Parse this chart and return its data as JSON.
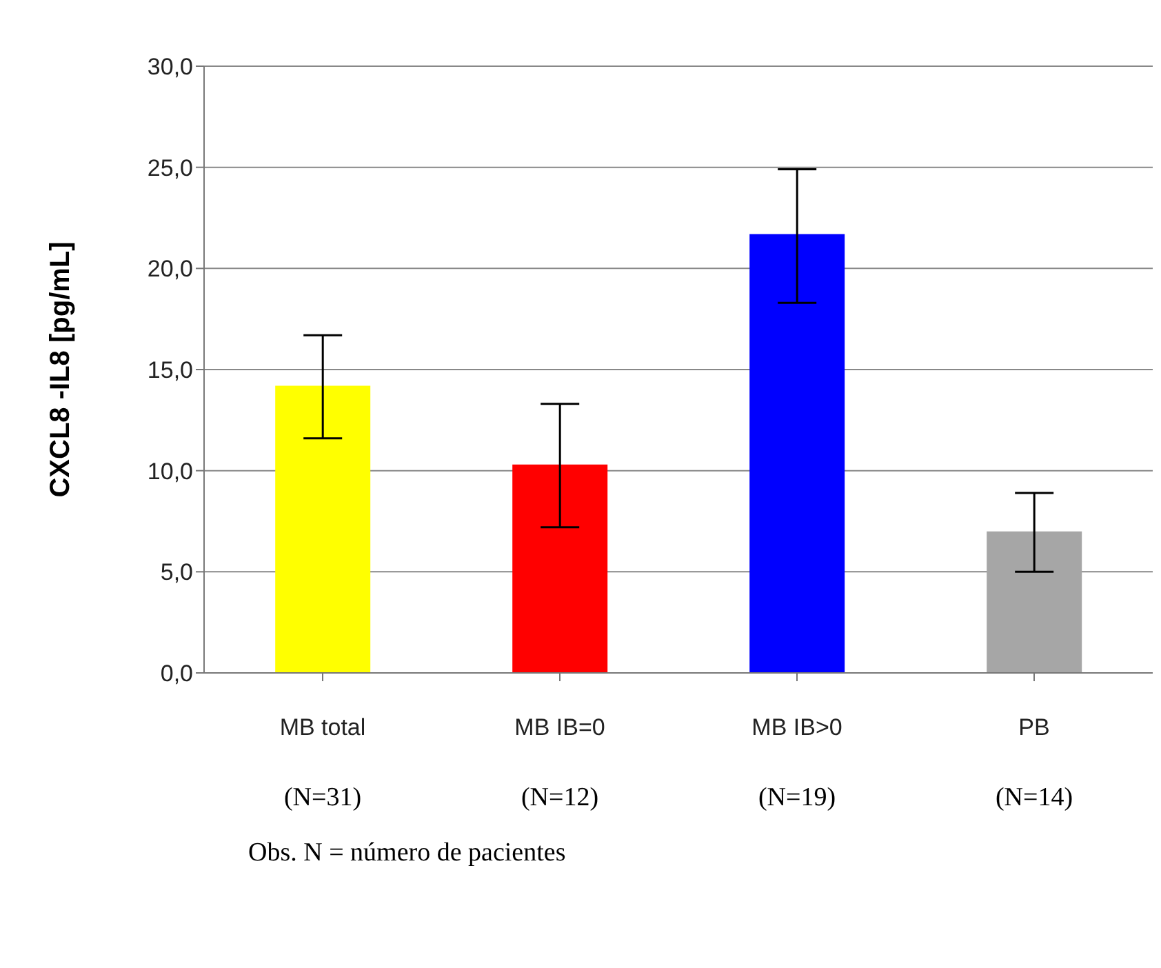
{
  "chart_data": {
    "type": "bar",
    "ylabel": "CXCL8 -IL8 [pg/mL]",
    "categories": [
      "MB total",
      "MB IB=0",
      "MB IB>0",
      "PB"
    ],
    "values": [
      14.2,
      10.3,
      21.7,
      7.0
    ],
    "colors": [
      "#ffff00",
      "#ff0000",
      "#0000ff",
      "#a6a6a6"
    ],
    "errors": [
      [
        11.6,
        16.7
      ],
      [
        7.2,
        13.3
      ],
      [
        18.3,
        24.9
      ],
      [
        5.0,
        8.9
      ]
    ],
    "ylim": [
      0,
      30
    ],
    "yticks": [
      {
        "value": 0,
        "label": "0,0"
      },
      {
        "value": 5,
        "label": "5,0"
      },
      {
        "value": 10,
        "label": "10,0"
      },
      {
        "value": 15,
        "label": "15,0"
      },
      {
        "value": 20,
        "label": "20,0"
      },
      {
        "value": 25,
        "label": "25,0"
      },
      {
        "value": 30,
        "label": "30,0"
      }
    ],
    "grid": "y",
    "legend": false,
    "annotations": [
      "(N=31)",
      "(N=12)",
      "(N=19)",
      "(N=14)",
      "Obs. N = número de pacientes"
    ]
  }
}
